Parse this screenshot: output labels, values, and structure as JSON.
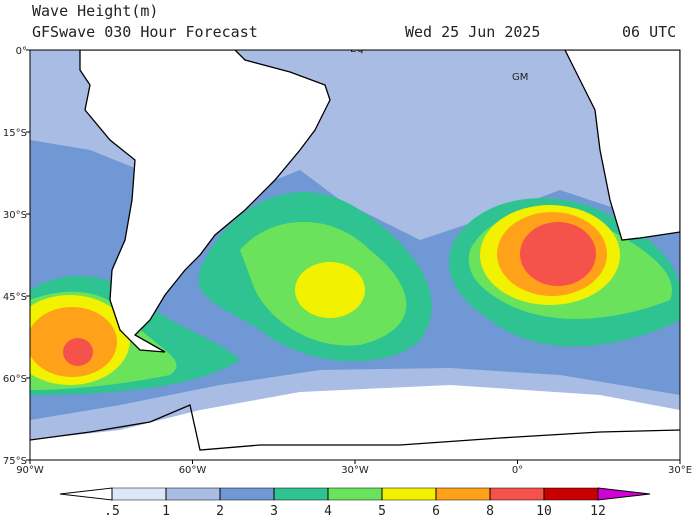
{
  "title": "Wave Height(m)",
  "subtitle": "GFSwave 030 Hour Forecast",
  "date": "Wed 25 Jun 2025",
  "time": "06 UTC",
  "map": {
    "xlim": [
      -90,
      30
    ],
    "ylim": [
      -75,
      0
    ],
    "xticks": [
      {
        "value": -90,
        "label": "90°W"
      },
      {
        "value": -60,
        "label": "60°W"
      },
      {
        "value": -30,
        "label": "30°W"
      },
      {
        "value": 0,
        "label": "0°"
      },
      {
        "value": 30,
        "label": "30°E"
      }
    ],
    "yticks": [
      {
        "value": 0,
        "label": "0°"
      },
      {
        "value": -15,
        "label": "15°S"
      },
      {
        "value": -30,
        "label": "30°S"
      },
      {
        "value": -45,
        "label": "45°S"
      },
      {
        "value": -60,
        "label": "60°S"
      },
      {
        "value": -75,
        "label": "75°S"
      }
    ],
    "annotations": [
      "EQ",
      "GM"
    ]
  },
  "colorbar": {
    "levels": [
      {
        "value": 0.5,
        "label": ".5"
      },
      1,
      2,
      3,
      4,
      5,
      6,
      8,
      10,
      12
    ],
    "colors": [
      "#ffffff",
      "#dce8f7",
      "#a9bce3",
      "#6f98d4",
      "#2fc391",
      "#6be25c",
      "#f2f200",
      "#ffa21a",
      "#f4524a",
      "#c80000",
      "#d200d2"
    ]
  }
}
